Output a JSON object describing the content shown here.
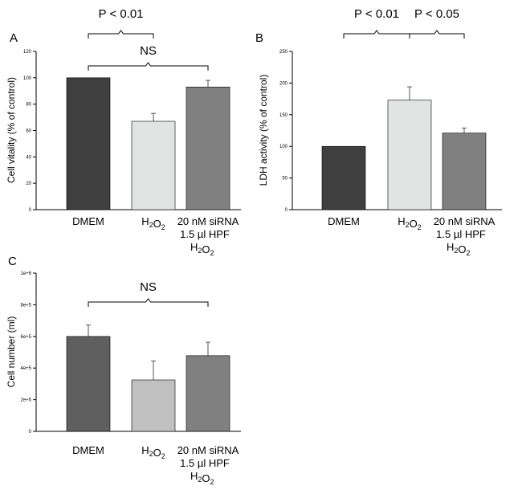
{
  "chart_data": [
    {
      "panel": "A",
      "type": "bar",
      "ylabel": "Cell vitality (% of control)",
      "ylim": [
        0,
        120
      ],
      "yticks": [
        "0",
        "20",
        "40",
        "60",
        "80",
        "100",
        "120"
      ],
      "categories": [
        "DMEM",
        "H2O2",
        "20 nM siRNA"
      ],
      "category_sub": [
        "",
        "",
        "1.5 µl HPF"
      ],
      "category_sub2": [
        "",
        "",
        "H2O2"
      ],
      "values": [
        100,
        67,
        93
      ],
      "errors": [
        0,
        6,
        5
      ],
      "colors": [
        "#3f3f3f",
        "#e2e4e4",
        "#808080"
      ],
      "brackets": [
        {
          "from": 0,
          "to": 1,
          "label": "P < 0.01",
          "level": 2
        },
        {
          "from": 0,
          "to": 2,
          "label": "NS",
          "level": 1
        }
      ]
    },
    {
      "panel": "B",
      "type": "bar",
      "ylabel": "LDH activity (% of control)",
      "ylim": [
        0,
        250
      ],
      "yticks": [
        "0",
        "50",
        "100",
        "150",
        "200",
        "250"
      ],
      "categories": [
        "DMEM",
        "H2O2",
        "20 nM siRNA"
      ],
      "category_sub": [
        "",
        "",
        "1.5 µl HPF"
      ],
      "category_sub2": [
        "",
        "",
        "H2O2"
      ],
      "values": [
        100,
        173,
        121
      ],
      "errors": [
        0,
        21,
        8
      ],
      "colors": [
        "#3f3f3f",
        "#e2e4e4",
        "#808080"
      ],
      "brackets": [
        {
          "from": 0,
          "to": 1,
          "label": "P < 0.01",
          "level": 1
        },
        {
          "from": 1,
          "to": 2,
          "label": "P < 0.05",
          "level": 1
        }
      ]
    },
    {
      "panel": "C",
      "type": "bar",
      "ylabel": "Cell number (ml)",
      "ylim": [
        0,
        1000000
      ],
      "yticks": [
        "0",
        "2e+5",
        "4e+5",
        "6e+5",
        "8e+5",
        "1e+6"
      ],
      "categories": [
        "DMEM",
        "H2O2",
        "20 nM siRNA"
      ],
      "category_sub": [
        "",
        "",
        "1.5 µl HPF"
      ],
      "category_sub2": [
        "",
        "",
        "H2O2"
      ],
      "values": [
        600000,
        325000,
        478000
      ],
      "errors": [
        72000,
        120000,
        85000
      ],
      "colors": [
        "#5f5f5f",
        "#c0c0c0",
        "#808080"
      ],
      "brackets": [
        {
          "from": 0,
          "to": 2,
          "label": "NS",
          "level": 1
        }
      ]
    }
  ]
}
